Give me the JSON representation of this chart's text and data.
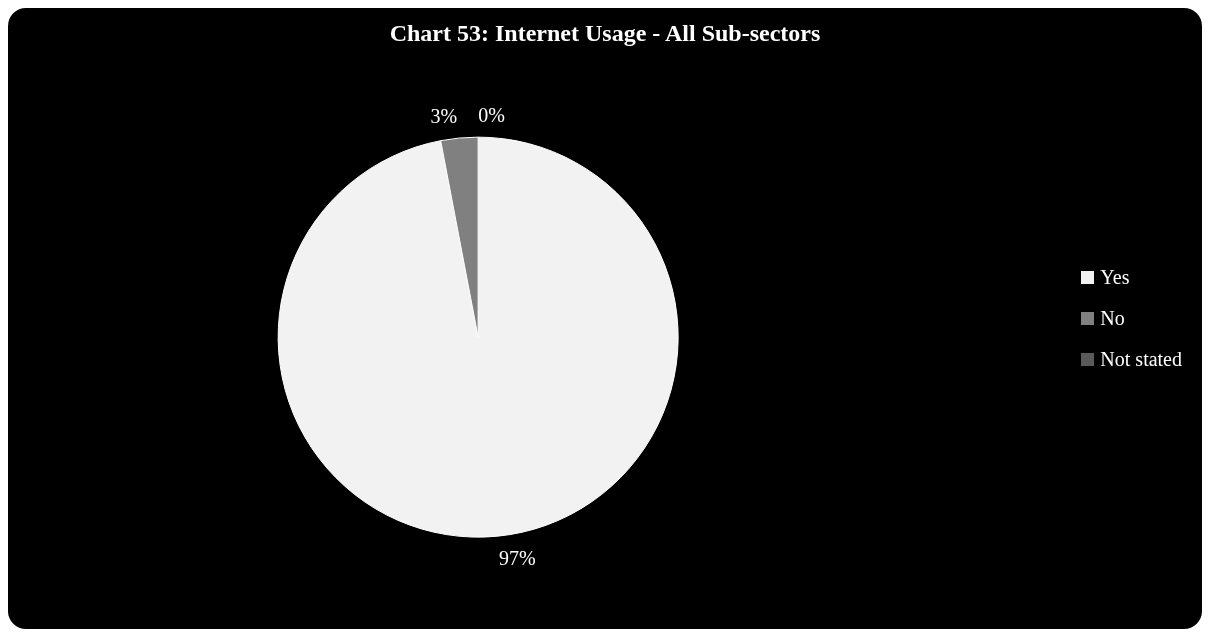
{
  "chart_data": {
    "type": "pie",
    "title": "Chart 53: Internet Usage - All Sub-sectors",
    "categories": [
      "Yes",
      "No",
      "Not stated"
    ],
    "values": [
      97,
      3,
      0
    ],
    "colors": [
      "#f2f2f2",
      "#808080",
      "#5a5a5a"
    ],
    "value_labels": [
      "97%",
      "3%",
      "0%"
    ],
    "legend": "right"
  }
}
